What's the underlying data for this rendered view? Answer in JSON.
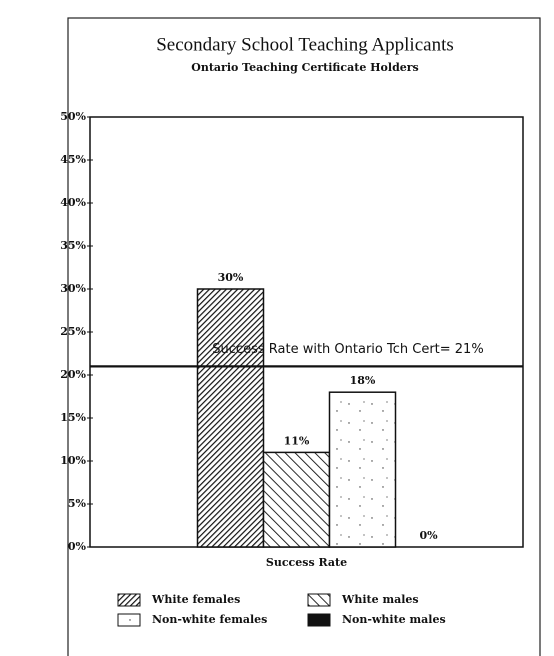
{
  "chart_data": {
    "type": "bar",
    "title": "Secondary School Teaching Applicants",
    "subtitle": "Ontario Teaching Certificate Holders",
    "categories": [
      "Success Rate"
    ],
    "series": [
      {
        "name": "White females",
        "color": "#111111",
        "pattern": "dense-hatch",
        "values": [
          30
        ],
        "value_labels": [
          "30%"
        ]
      },
      {
        "name": "White males",
        "color": "#111111",
        "pattern": "hatch",
        "values": [
          11
        ],
        "value_labels": [
          "11%"
        ]
      },
      {
        "name": "Non-white females",
        "color": "#111111",
        "pattern": "dots",
        "values": [
          18
        ],
        "value_labels": [
          "18%"
        ]
      },
      {
        "name": "Non-white males",
        "color": "#111111",
        "pattern": "solid",
        "values": [
          0
        ],
        "value_labels": [
          "0%"
        ]
      }
    ],
    "ylim": [
      0,
      50
    ],
    "yticks": [
      {
        "value": 0,
        "label": "0%"
      },
      {
        "value": 5,
        "label": "5%"
      },
      {
        "value": 10,
        "label": "10%"
      },
      {
        "value": 15,
        "label": "15%"
      },
      {
        "value": 20,
        "label": "20%"
      },
      {
        "value": 25,
        "label": "25%"
      },
      {
        "value": 30,
        "label": "30%"
      },
      {
        "value": 35,
        "label": "35%"
      },
      {
        "value": 40,
        "label": "40%"
      },
      {
        "value": 45,
        "label": "45%"
      },
      {
        "value": 50,
        "label": "50%"
      }
    ],
    "reference_line": {
      "value": 21,
      "label": "Success Rate with Ontario Tch Cert= 21%"
    },
    "grid": false
  }
}
